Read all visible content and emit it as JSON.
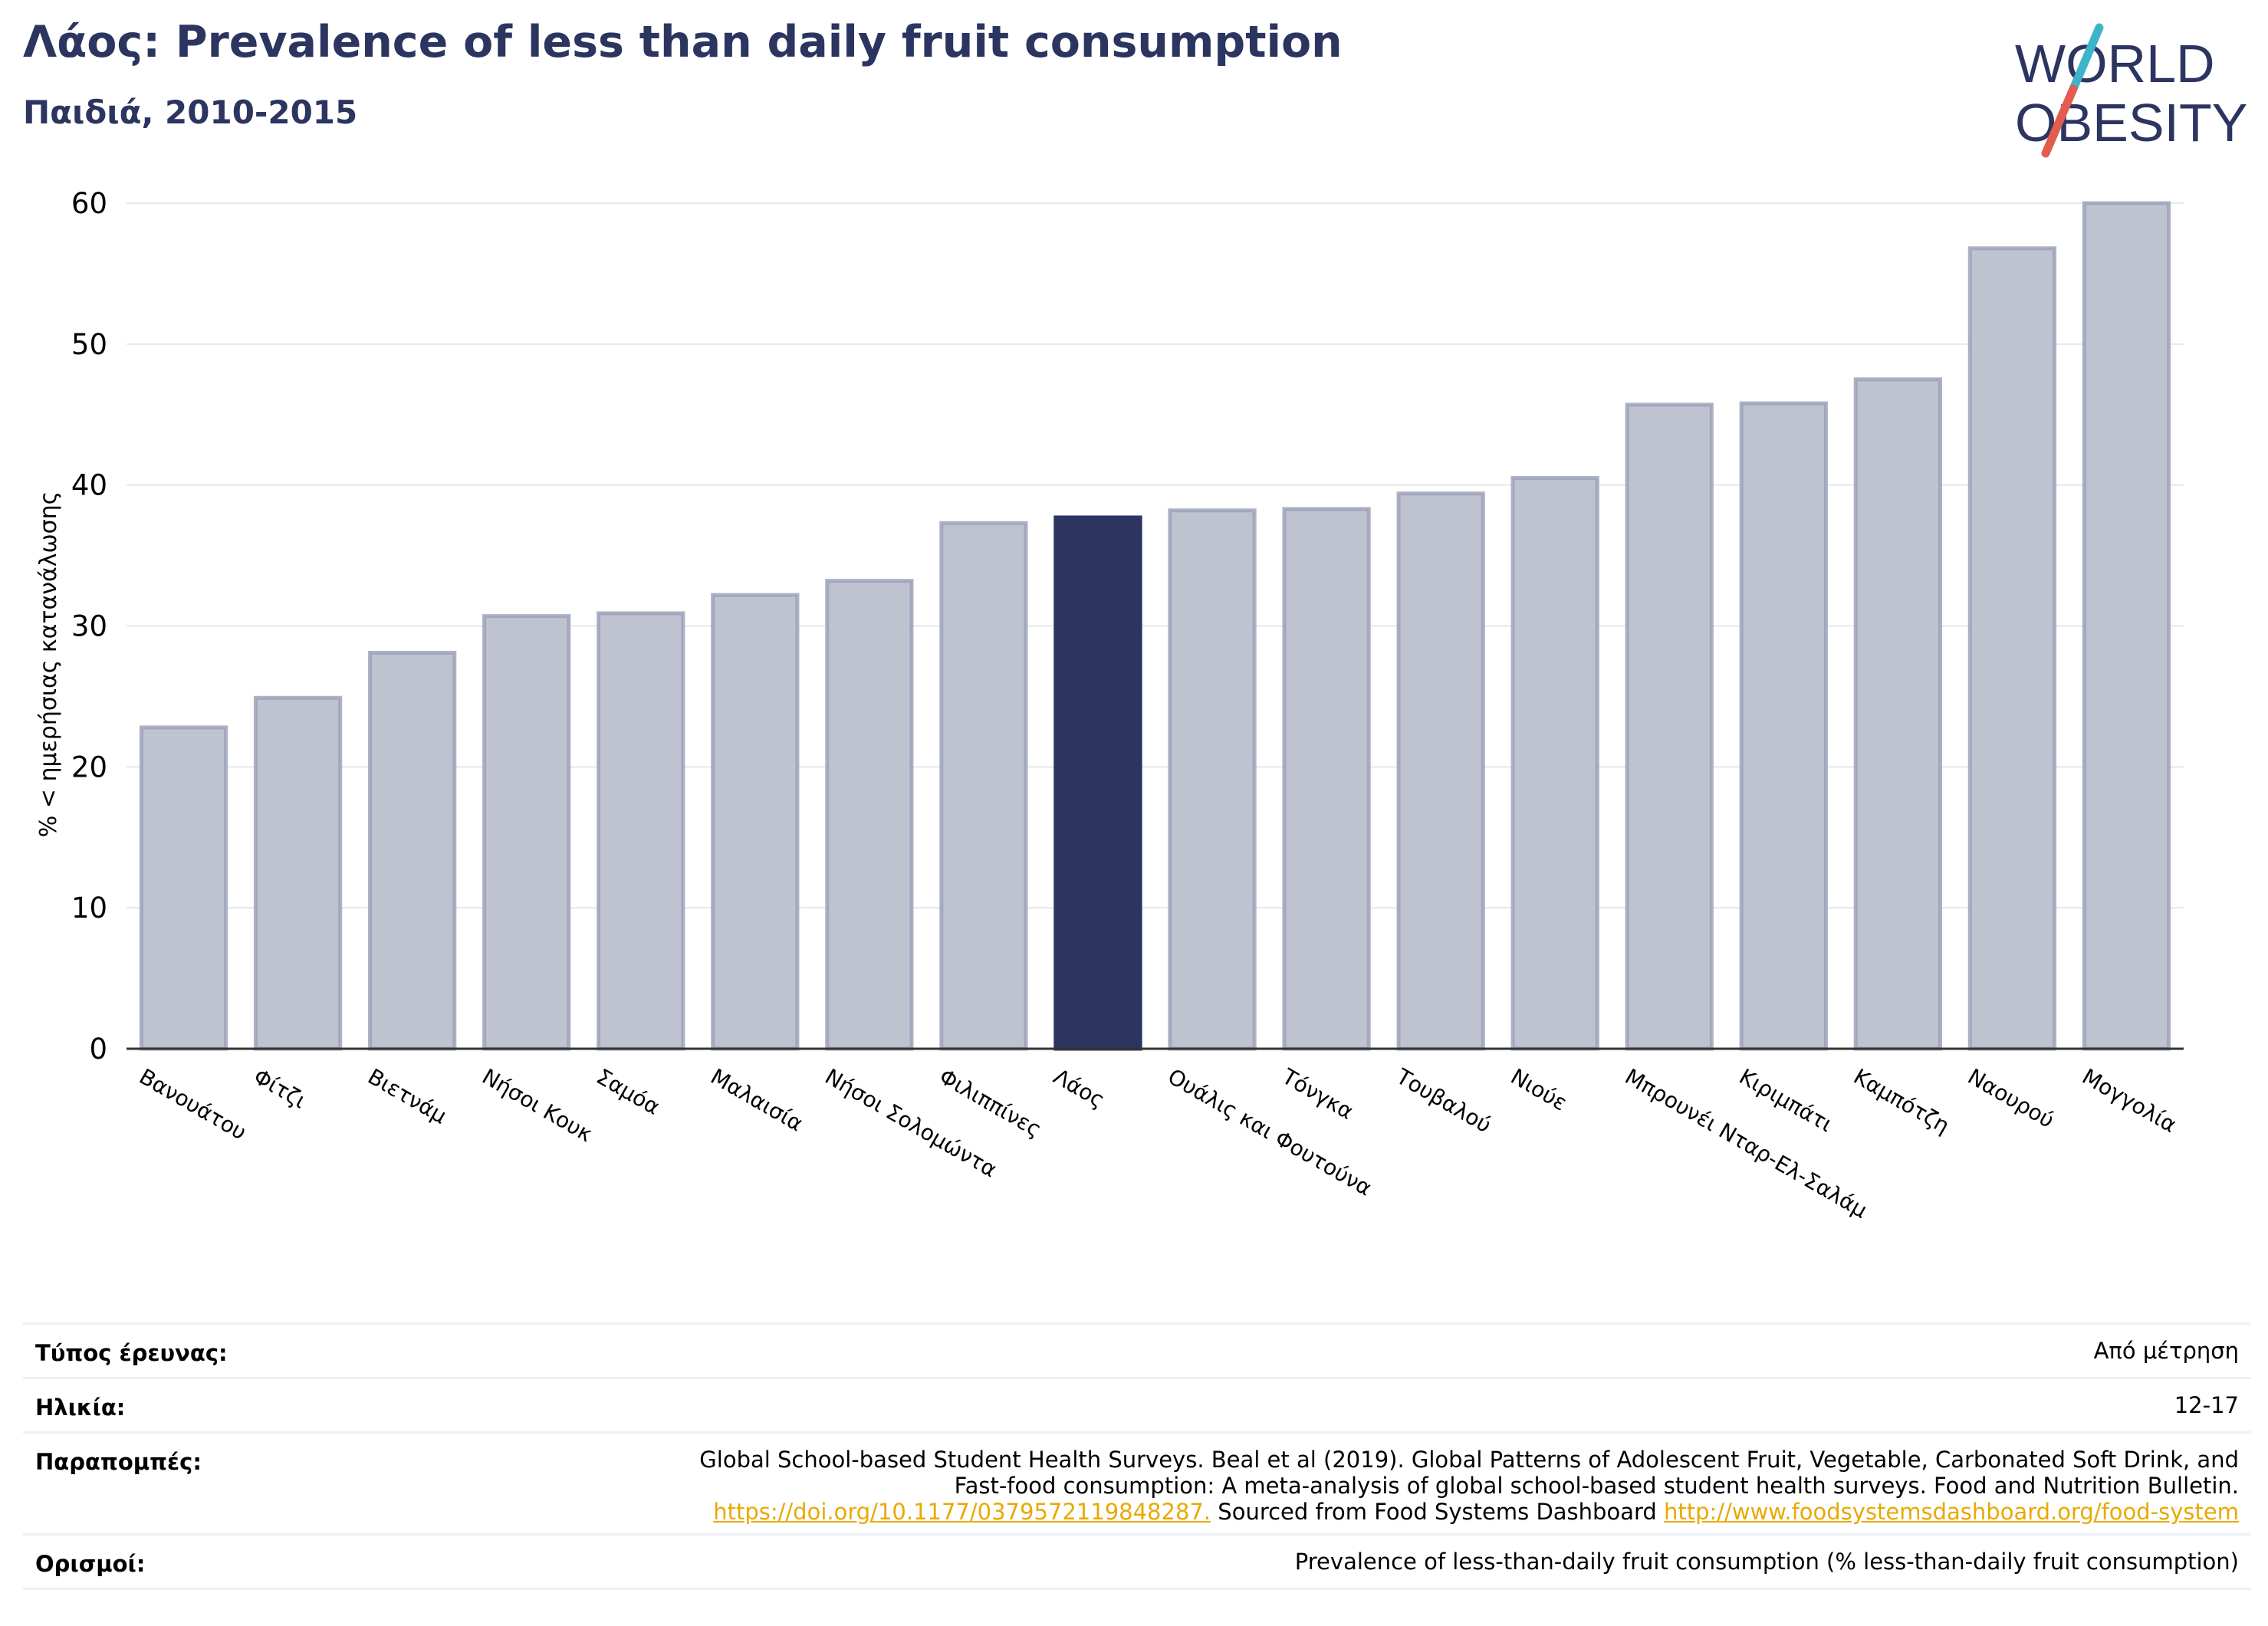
{
  "header": {
    "title": "Λάος: Prevalence of less than daily fruit consumption",
    "subtitle": "Παιδιά, 2010-2015"
  },
  "logo": {
    "line1": "WORLD",
    "line2": "OBESITY",
    "colors": {
      "text": "#2b3560",
      "slash_top": "#3db4c8",
      "slash_bottom": "#e25c4f"
    }
  },
  "chart_data": {
    "type": "bar",
    "ylabel": "% < ημερήσιας κατανάλωσης",
    "ylim": [
      0,
      60
    ],
    "yticks": [
      0,
      10,
      20,
      30,
      40,
      50,
      60
    ],
    "grid": true,
    "highlight": "Λάος",
    "colors": {
      "bar": "#bfc2cf",
      "bar_edge": "#9a9fb6",
      "highlight": "#2b3560"
    },
    "categories": [
      "Βανουάτου",
      "Φίτζι",
      "Βιετνάμ",
      "Νήσοι Κουκ",
      "Σαμόα",
      "Μαλαισία",
      "Νήσοι Σολομώντα",
      "Φιλιππίνες",
      "Λάος",
      "Ουάλις και Φουτούνα",
      "Τόνγκα",
      "Τουβαλού",
      "Νιούε",
      "Μπρουνέι Νταρ-Ελ-Σαλάμ",
      "Κιριμπάτι",
      "Καμπότζη",
      "Ναουρού",
      "Μογγολία"
    ],
    "values": [
      22.8,
      24.9,
      28.1,
      30.7,
      30.9,
      32.2,
      33.2,
      37.3,
      37.7,
      38.2,
      38.3,
      39.4,
      40.5,
      45.7,
      45.8,
      47.5,
      56.8,
      60.0
    ]
  },
  "info": {
    "survey_type_label": "Τύπος έρευνας:",
    "survey_type_value": "Από μέτρηση",
    "age_label": "Ηλικία:",
    "age_value": "12-17",
    "references_label": "Παραπομπές:",
    "references_line1": "Global School-based Student Health Surveys. Beal et al (2019). Global Patterns of Adolescent Fruit, Vegetable, Carbonated Soft Drink, and",
    "references_line2": "Fast-food consumption: A meta-analysis of global school-based student health surveys. Food and Nutrition Bulletin.",
    "references_link1": "https://doi.org/10.1177/0379572119848287.",
    "references_mid": " Sourced from Food Systems Dashboard ",
    "references_link2": "http://www.foodsystemsdashboard.org/food-system",
    "definitions_label": "Ορισμοί:",
    "definitions_value": "Prevalence of less-than-daily fruit consumption (% less-than-daily fruit consumption)"
  }
}
